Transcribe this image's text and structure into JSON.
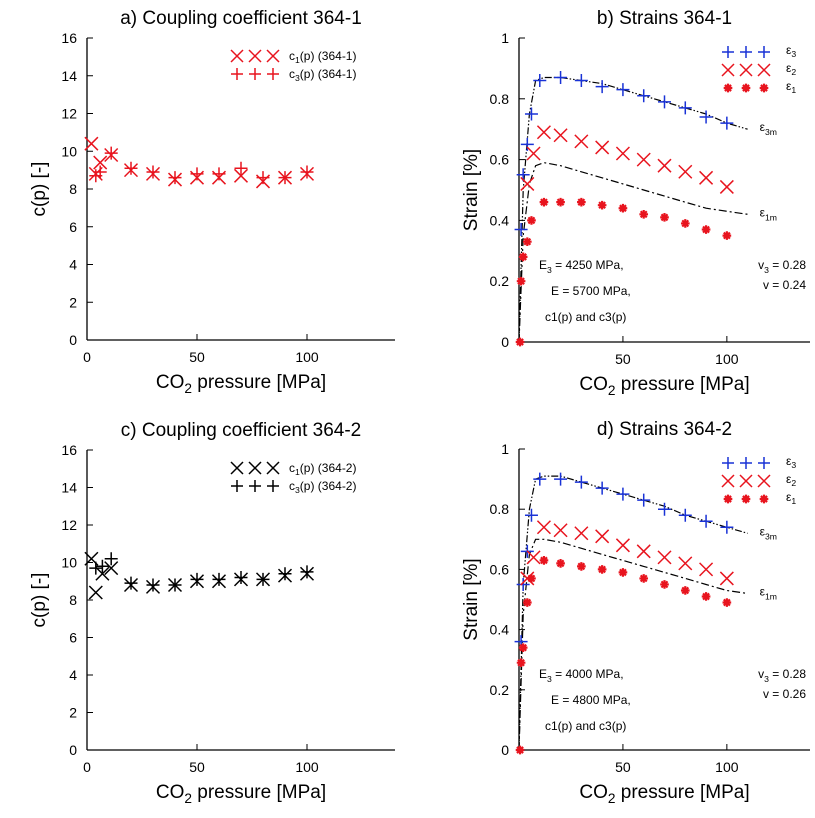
{
  "colors": {
    "red": "#e8141e",
    "blue": "#1932d6",
    "black": "#000000"
  },
  "chart_data": [
    {
      "id": "a",
      "type": "scatter",
      "title": "a) Coupling coefficient 364-1",
      "xlabel_main": "CO",
      "xlabel_sub": "2",
      "xlabel_rest": " pressure [MPa]",
      "ylabel": "c(p) [-]",
      "xlim": [
        0,
        140
      ],
      "ylim": [
        0,
        16
      ],
      "xticks": [
        0,
        50,
        100
      ],
      "yticks": [
        0,
        2,
        4,
        6,
        8,
        10,
        12,
        14,
        16
      ],
      "legend": [
        {
          "name_main": "c",
          "name_sub": "1",
          "name_rest": "(p) (364-1)",
          "marker": "x",
          "color": "#e8141e"
        },
        {
          "name_main": "c",
          "name_sub": "3",
          "name_rest": "(p) (364-1)",
          "marker": "+",
          "color": "#e8141e"
        }
      ],
      "series": [
        {
          "marker": "x",
          "color": "#e8141e",
          "x": [
            2,
            4,
            6,
            11,
            20,
            30,
            40,
            50,
            60,
            70,
            80,
            90,
            100
          ],
          "y": [
            10.4,
            8.8,
            9.4,
            9.8,
            9.0,
            8.8,
            8.5,
            8.6,
            8.6,
            8.7,
            8.4,
            8.6,
            8.8
          ]
        },
        {
          "marker": "+",
          "color": "#e8141e",
          "x": [
            4,
            6,
            11,
            20,
            30,
            40,
            50,
            60,
            70,
            80,
            90,
            100
          ],
          "y": [
            8.7,
            8.9,
            9.9,
            9.1,
            8.9,
            8.6,
            8.8,
            8.8,
            9.1,
            8.6,
            8.6,
            8.9
          ]
        }
      ]
    },
    {
      "id": "b",
      "type": "scatter",
      "title": "b) Strains 364-1",
      "xlabel_main": "CO",
      "xlabel_sub": "2",
      "xlabel_rest": " pressure [MPa]",
      "ylabel": "Strain [%]",
      "xlim": [
        0,
        140
      ],
      "ylim": [
        0,
        1
      ],
      "xticks": [
        50,
        100
      ],
      "yticks": [
        0,
        0.2,
        0.4,
        0.6,
        0.8,
        1
      ],
      "ytick_labels": [
        "0",
        "0.2",
        "0.4",
        "0.6",
        "0.8",
        "1"
      ],
      "legend": [
        {
          "name_main": "ε",
          "name_sub": "3",
          "marker": "+",
          "color": "#1932d6"
        },
        {
          "name_main": "ε",
          "name_sub": "2",
          "marker": "x",
          "color": "#e8141e"
        },
        {
          "name_main": "ε",
          "name_sub": "1",
          "marker": "*",
          "color": "#e8141e"
        }
      ],
      "series": [
        {
          "marker": "+",
          "color": "#1932d6",
          "x": [
            1,
            2,
            4,
            6,
            10,
            20,
            30,
            40,
            50,
            60,
            70,
            80,
            90,
            100
          ],
          "y": [
            0.37,
            0.55,
            0.65,
            0.75,
            0.86,
            0.87,
            0.86,
            0.84,
            0.83,
            0.81,
            0.79,
            0.77,
            0.74,
            0.72
          ]
        },
        {
          "marker": "x",
          "color": "#e8141e",
          "x": [
            4,
            7,
            12,
            20,
            30,
            40,
            50,
            60,
            70,
            80,
            90,
            100
          ],
          "y": [
            0.52,
            0.62,
            0.69,
            0.68,
            0.66,
            0.64,
            0.62,
            0.6,
            0.58,
            0.56,
            0.54,
            0.51
          ]
        },
        {
          "marker": "*",
          "color": "#e8141e",
          "x": [
            0.5,
            1,
            2,
            4,
            6,
            12,
            20,
            30,
            40,
            50,
            60,
            70,
            80,
            90,
            100
          ],
          "y": [
            0.0,
            0.2,
            0.28,
            0.33,
            0.4,
            0.46,
            0.46,
            0.46,
            0.45,
            0.44,
            0.42,
            0.41,
            0.39,
            0.37,
            0.35
          ]
        }
      ],
      "lines": [
        {
          "label_main": "ε",
          "label_sub": "3m",
          "style": "dash-dot-dot",
          "x": [
            0,
            2,
            5,
            8,
            12,
            20,
            30,
            40,
            50,
            60,
            70,
            80,
            90,
            100,
            110
          ],
          "y": [
            0,
            0.5,
            0.75,
            0.86,
            0.87,
            0.87,
            0.86,
            0.85,
            0.83,
            0.81,
            0.79,
            0.77,
            0.75,
            0.72,
            0.7
          ]
        },
        {
          "label_main": "ε",
          "label_sub": "1m",
          "style": "dash-dot",
          "x": [
            0,
            2,
            5,
            8,
            12,
            20,
            30,
            40,
            50,
            60,
            70,
            80,
            90,
            100,
            110
          ],
          "y": [
            0,
            0.35,
            0.52,
            0.58,
            0.59,
            0.58,
            0.56,
            0.54,
            0.52,
            0.5,
            0.48,
            0.46,
            0.44,
            0.43,
            0.42
          ]
        }
      ],
      "annotations": {
        "E3_main": "E",
        "E3_sub": "3",
        "E3_rest": " =  4250  MPa,",
        "E": "E =  5700  MPa,",
        "c_line": "c1(p) and c3(p)",
        "v3_main": "v",
        "v3_sub": "3",
        "v3_rest": " = 0.28",
        "v": "v = 0.24"
      }
    },
    {
      "id": "c",
      "type": "scatter",
      "title": "c) Coupling coefficient 364-2",
      "xlabel_main": "CO",
      "xlabel_sub": "2",
      "xlabel_rest": " pressure [MPa]",
      "ylabel": "c(p) [-]",
      "xlim": [
        0,
        140
      ],
      "ylim": [
        0,
        16
      ],
      "xticks": [
        0,
        50,
        100
      ],
      "yticks": [
        0,
        2,
        4,
        6,
        8,
        10,
        12,
        14,
        16
      ],
      "legend": [
        {
          "name_main": "c",
          "name_sub": "1",
          "name_rest": "(p) (364-2)",
          "marker": "x",
          "color": "#000000"
        },
        {
          "name_main": "c",
          "name_sub": "3",
          "name_rest": "(p) (364-2)",
          "marker": "+",
          "color": "#000000"
        }
      ],
      "series": [
        {
          "marker": "x",
          "color": "#000000",
          "x": [
            2,
            4,
            7,
            11,
            20,
            30,
            40,
            50,
            60,
            70,
            80,
            90,
            100
          ],
          "y": [
            10.2,
            8.4,
            9.4,
            9.7,
            8.8,
            8.7,
            8.8,
            9.0,
            9.0,
            9.1,
            9.1,
            9.3,
            9.4
          ]
        },
        {
          "marker": "+",
          "color": "#000000",
          "x": [
            4,
            7,
            11,
            20,
            30,
            40,
            50,
            60,
            70,
            80,
            90,
            100
          ],
          "y": [
            9.7,
            9.8,
            10.2,
            8.9,
            8.8,
            8.8,
            9.1,
            9.1,
            9.2,
            9.1,
            9.4,
            9.5
          ]
        }
      ]
    },
    {
      "id": "d",
      "type": "scatter",
      "title": "d) Strains 364-2",
      "xlabel_main": "CO",
      "xlabel_sub": "2",
      "xlabel_rest": " pressure [MPa]",
      "ylabel": "Strain [%]",
      "xlim": [
        0,
        140
      ],
      "ylim": [
        0,
        1
      ],
      "xticks": [
        50,
        100
      ],
      "yticks": [
        0,
        0.2,
        0.4,
        0.6,
        0.8,
        1
      ],
      "ytick_labels": [
        "0",
        "0.2",
        "0.4",
        "0.6",
        "0.8",
        "1"
      ],
      "legend": [
        {
          "name_main": "ε",
          "name_sub": "3",
          "marker": "+",
          "color": "#1932d6"
        },
        {
          "name_main": "ε",
          "name_sub": "2",
          "marker": "x",
          "color": "#e8141e"
        },
        {
          "name_main": "ε",
          "name_sub": "1",
          "marker": "*",
          "color": "#e8141e"
        }
      ],
      "series": [
        {
          "marker": "+",
          "color": "#1932d6",
          "x": [
            1,
            2,
            4,
            6,
            10,
            20,
            30,
            40,
            50,
            60,
            70,
            80,
            90,
            100
          ],
          "y": [
            0.36,
            0.55,
            0.66,
            0.78,
            0.9,
            0.9,
            0.89,
            0.87,
            0.85,
            0.83,
            0.8,
            0.78,
            0.76,
            0.74
          ]
        },
        {
          "marker": "x",
          "color": "#e8141e",
          "x": [
            4,
            7,
            12,
            20,
            30,
            40,
            50,
            60,
            70,
            80,
            90,
            100
          ],
          "y": [
            0.57,
            0.64,
            0.74,
            0.73,
            0.72,
            0.71,
            0.68,
            0.66,
            0.64,
            0.62,
            0.6,
            0.57
          ]
        },
        {
          "marker": "*",
          "color": "#e8141e",
          "x": [
            0.5,
            1,
            2,
            4,
            6,
            12,
            20,
            30,
            40,
            50,
            60,
            70,
            80,
            90,
            100
          ],
          "y": [
            0.0,
            0.29,
            0.34,
            0.49,
            0.57,
            0.63,
            0.62,
            0.61,
            0.6,
            0.59,
            0.57,
            0.55,
            0.53,
            0.51,
            0.49
          ]
        }
      ],
      "lines": [
        {
          "label_main": "ε",
          "label_sub": "3m",
          "style": "dash-dot-dot",
          "x": [
            0,
            2,
            5,
            8,
            12,
            20,
            30,
            40,
            50,
            60,
            70,
            80,
            90,
            100,
            110
          ],
          "y": [
            0,
            0.55,
            0.8,
            0.9,
            0.91,
            0.91,
            0.89,
            0.87,
            0.85,
            0.83,
            0.81,
            0.78,
            0.76,
            0.74,
            0.72
          ]
        },
        {
          "label_main": "ε",
          "label_sub": "1m",
          "style": "dash-dot",
          "x": [
            0,
            2,
            5,
            8,
            12,
            20,
            30,
            40,
            50,
            60,
            70,
            80,
            90,
            100,
            110
          ],
          "y": [
            0,
            0.45,
            0.65,
            0.7,
            0.7,
            0.69,
            0.67,
            0.65,
            0.63,
            0.61,
            0.59,
            0.57,
            0.55,
            0.53,
            0.52
          ]
        }
      ],
      "annotations": {
        "E3_main": "E",
        "E3_sub": "3",
        "E3_rest": " =  4000  MPa,",
        "E": "E =  4800  MPa,",
        "c_line": "c1(p) and c3(p)",
        "v3_main": "v",
        "v3_sub": "3",
        "v3_rest": " = 0.28",
        "v": "v = 0.26"
      }
    }
  ]
}
